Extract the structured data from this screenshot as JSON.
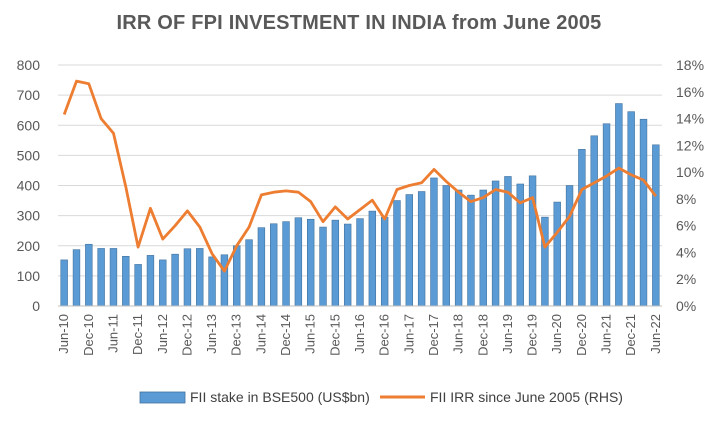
{
  "chart_data": {
    "type": "bar",
    "title": "IRR OF FPI INVESTMENT IN INDIA from June 2005",
    "xlabel": "",
    "ylabel": "",
    "ylabel_right": "",
    "categories": [
      "Jun-10",
      "Sep-10",
      "Dec-10",
      "Mar-11",
      "Jun-11",
      "Sep-11",
      "Dec-11",
      "Mar-12",
      "Jun-12",
      "Sep-12",
      "Dec-12",
      "Mar-13",
      "Jun-13",
      "Sep-13",
      "Dec-13",
      "Mar-14",
      "Jun-14",
      "Sep-14",
      "Dec-14",
      "Mar-15",
      "Jun-15",
      "Sep-15",
      "Dec-15",
      "Mar-16",
      "Jun-16",
      "Sep-16",
      "Dec-16",
      "Mar-17",
      "Jun-17",
      "Sep-17",
      "Dec-17",
      "Mar-18",
      "Jun-18",
      "Sep-18",
      "Dec-18",
      "Mar-19",
      "Jun-19",
      "Sep-19",
      "Dec-19",
      "Mar-20",
      "Jun-20",
      "Sep-20",
      "Dec-20",
      "Mar-21",
      "Jun-21",
      "Sep-21",
      "Dec-21",
      "Mar-22",
      "Jun-22"
    ],
    "tick_labels": [
      "Jun-10",
      "Dec-10",
      "Jun-11",
      "Dec-11",
      "Jun-12",
      "Dec-12",
      "Jun-13",
      "Dec-13",
      "Jun-14",
      "Dec-14",
      "Jun-15",
      "Dec-15",
      "Jun-16",
      "Dec-16",
      "Jun-17",
      "Dec-17",
      "Jun-18",
      "Dec-18",
      "Jun-19",
      "Dec-19",
      "Jun-20",
      "Dec-20",
      "Jun-21",
      "Dec-21",
      "Jun-22"
    ],
    "series": [
      {
        "name": "FII stake in BSE500 (US$bn)",
        "type": "bar",
        "axis": "left",
        "color": "#5B9BD5",
        "values": [
          153,
          187,
          205,
          191,
          191,
          165,
          138,
          168,
          153,
          172,
          190,
          191,
          163,
          170,
          200,
          220,
          260,
          273,
          280,
          293,
          288,
          262,
          285,
          272,
          290,
          315,
          295,
          350,
          370,
          380,
          425,
          400,
          385,
          368,
          385,
          415,
          430,
          405,
          432,
          295,
          345,
          400,
          520,
          565,
          605,
          672,
          645,
          620,
          535
        ]
      },
      {
        "name": "FII IRR since June 2005 (RHS)",
        "type": "line",
        "axis": "right",
        "color": "#ED7D31",
        "values": [
          14.3,
          16.8,
          16.6,
          14,
          12.9,
          8.9,
          4.4,
          7.3,
          5,
          6,
          7.1,
          5.9,
          3.9,
          2.6,
          4.5,
          5.9,
          8.3,
          8.5,
          8.6,
          8.5,
          7.8,
          6.3,
          7.4,
          6.5,
          7.2,
          7.9,
          6.5,
          8.7,
          9,
          9.2,
          10.2,
          9.3,
          8.5,
          7.8,
          8.1,
          8.7,
          8.5,
          7.7,
          8.1,
          4.4,
          5.5,
          6.7,
          8.7,
          9.2,
          9.7,
          10.3,
          9.8,
          9.4,
          8.2
        ]
      }
    ],
    "ylim": [
      0,
      800
    ],
    "y_ticks": [
      "0",
      "100",
      "200",
      "300",
      "400",
      "500",
      "600",
      "700",
      "800"
    ],
    "y2lim": [
      0,
      18
    ],
    "y2_ticks": [
      "0%",
      "2%",
      "4%",
      "6%",
      "8%",
      "10%",
      "12%",
      "14%",
      "16%",
      "18%"
    ],
    "grid": true,
    "legend_position": "bottom"
  }
}
